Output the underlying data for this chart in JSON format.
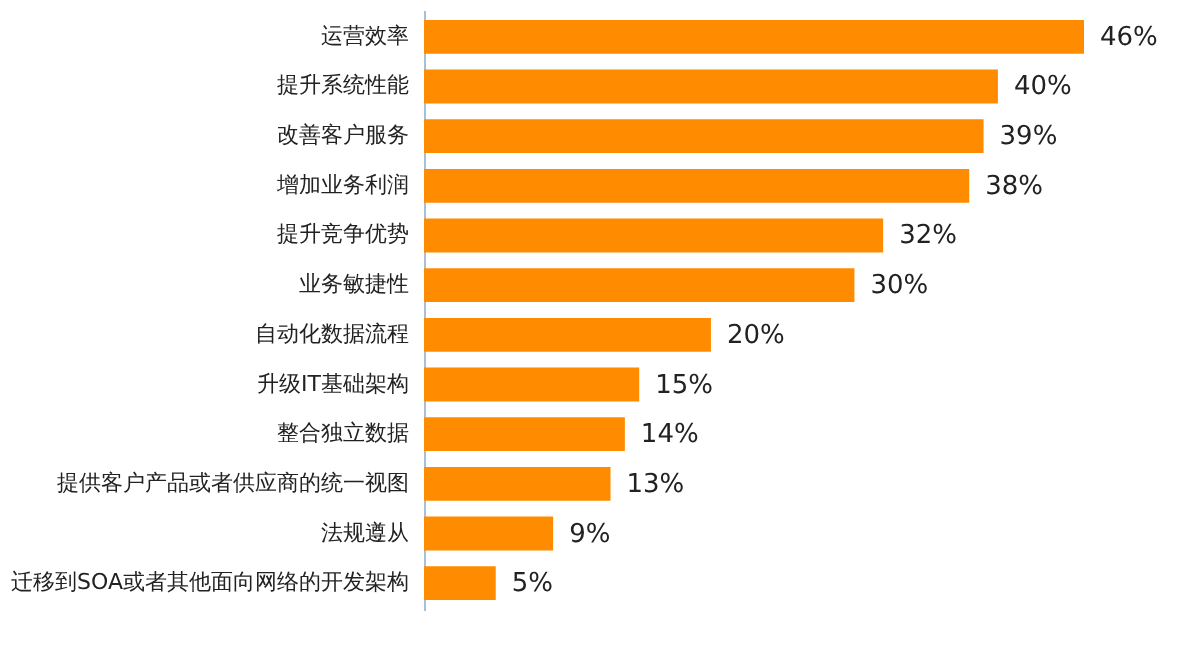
{
  "chart_data": {
    "type": "bar",
    "orientation": "horizontal",
    "categories": [
      "运营效率",
      "提升系统性能",
      "改善客户服务",
      "增加业务利润",
      "提升竞争优势",
      "业务敏捷性",
      "自动化数据流程",
      "升级IT基础架构",
      "整合独立数据",
      "提供客户产品或者供应商的统一视图",
      "法规遵从",
      "迁移到SOA或者其他面向网络的开发架构"
    ],
    "values": [
      46,
      40,
      39,
      38,
      32,
      30,
      20,
      15,
      14,
      13,
      9,
      5
    ],
    "value_labels": [
      "46%",
      "40%",
      "39%",
      "38%",
      "32%",
      "30%",
      "20%",
      "15%",
      "14%",
      "13%",
      "9%",
      "5%"
    ],
    "color": "#ff8c00"
  }
}
